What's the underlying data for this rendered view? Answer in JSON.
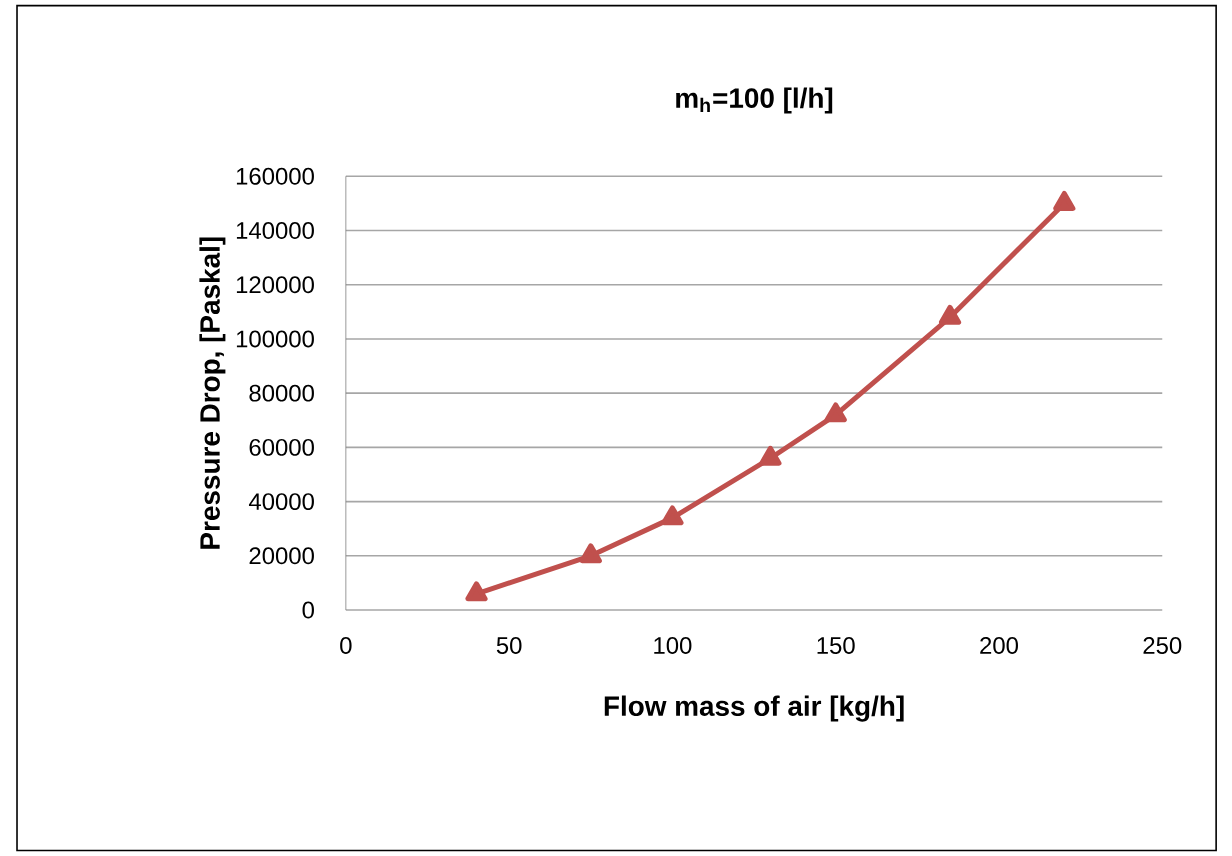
{
  "chart_data": {
    "type": "line",
    "title": "m$_{h}$=100 [l/h]",
    "xlabel": "Flow mass of air [kg/h]",
    "ylabel": "Pressure Drop, [Paskal]",
    "x": [
      40,
      75,
      100,
      130,
      150,
      185,
      220
    ],
    "series": [
      {
        "color": "#c0504d",
        "values": [
          6000,
          20000,
          34000,
          56000,
          72000,
          108000,
          150000
        ]
      }
    ],
    "xlim": [
      0,
      250
    ],
    "xticks": [
      0,
      50,
      100,
      150,
      200,
      250
    ],
    "ylim": [
      0,
      160000
    ],
    "yticks": [
      0,
      20000,
      40000,
      60000,
      80000,
      100000,
      120000,
      140000,
      160000
    ],
    "grid": "y",
    "marker": "triangle",
    "line_style": "solid"
  }
}
